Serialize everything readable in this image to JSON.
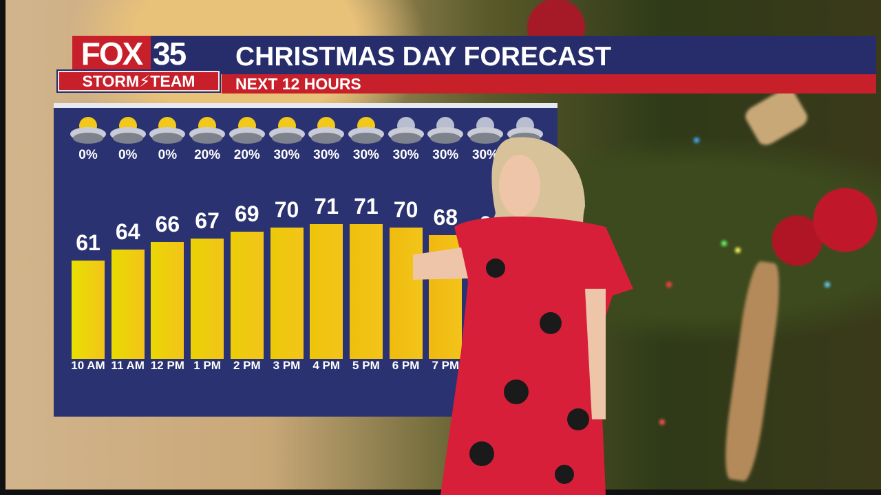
{
  "header": {
    "logo_text": "FOX",
    "logo_number": "35",
    "logo_sub": "STORM⚡TEAM",
    "title": "CHRISTMAS DAY FORECAST",
    "subtitle": "NEXT 12 HOURS"
  },
  "colors": {
    "navy": "#272d6b",
    "red": "#c8202b",
    "panel": "#2b3272",
    "bar_low": "#e8e000",
    "bar_high": "#f0b810"
  },
  "chart_data": {
    "type": "bar",
    "title": "CHRISTMAS DAY FORECAST",
    "subtitle": "NEXT 12 HOURS",
    "categories": [
      "10 AM",
      "11 AM",
      "12 PM",
      "1 PM",
      "2 PM",
      "3 PM",
      "4 PM",
      "5 PM",
      "6 PM",
      "7 PM"
    ],
    "values": [
      61,
      64,
      66,
      67,
      69,
      70,
      71,
      71,
      70,
      68
    ],
    "partial_value_label": "6",
    "ylim": [
      34,
      75
    ],
    "precip_chance": [
      "0%",
      "0%",
      "0%",
      "20%",
      "20%",
      "30%",
      "30%",
      "30%",
      "30%",
      "30%",
      "30%"
    ],
    "icons": [
      "partly-cloudy-day",
      "partly-cloudy-day",
      "partly-cloudy-day",
      "partly-cloudy-day",
      "partly-sunny",
      "partly-sunny",
      "partly-sunny",
      "partly-sunny",
      "partly-cloudy-night",
      "partly-cloudy-night",
      "partly-cloudy-night",
      "partly-cloudy-night"
    ]
  }
}
